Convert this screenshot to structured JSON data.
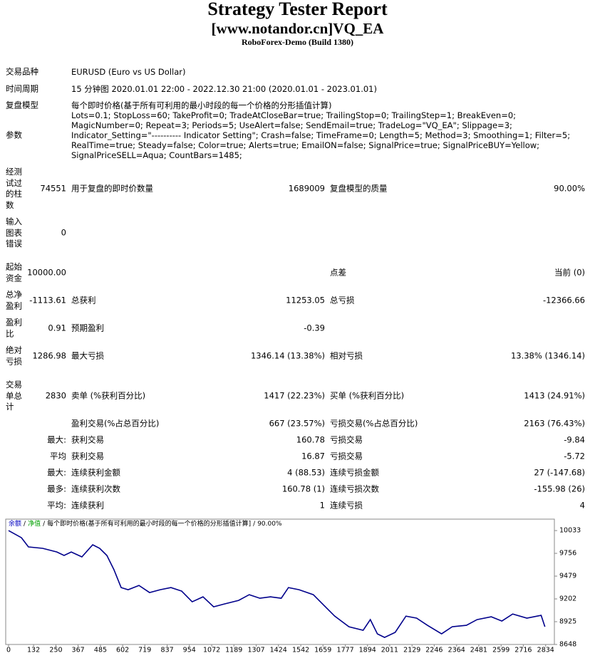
{
  "header": {
    "title": "Strategy Tester Report",
    "subtitle": "[www.notandor.cn]VQ_EA",
    "build": "RoboForex-Demo (Build 1380)"
  },
  "info": [
    {
      "label": "交易品种",
      "value": "EURUSD (Euro vs US Dollar)"
    },
    {
      "label": "时间周期",
      "value": "15 分钟图 2020.01.01 22:00 - 2022.12.30 21:00 (2020.01.01 - 2023.01.01)"
    },
    {
      "label": "复盘模型",
      "value": "每个即时价格(基于所有可利用的最小时段的每一个价格的分形插值计算)"
    },
    {
      "label": "参数",
      "value": "Lots=0.1; StopLoss=60; TakeProfit=0; TradeAtCloseBar=true; TrailingStop=0; TrailingStep=1; BreakEven=0; MagicNumber=0; Repeat=3; Periods=5; UseAlert=false; SendEmail=true; TradeLog=\"VQ_EA\"; Slippage=3; Indicator_Setting=\"---------- Indicator Setting\"; Crash=false; TimeFrame=0; Length=5; Method=3; Smoothing=1; Filter=5; RealTime=true; Steady=false; Color=true; Alerts=true; EmailON=false; SignalPrice=true; SignalPriceBUY=Yellow; SignalPriceSELL=Aqua; CountBars=1485;"
    }
  ],
  "stats": [
    {
      "l1": "经测试过的柱数",
      "v1": "74551",
      "l2": "用于复盘的即时价数量",
      "v2": "1689009",
      "l3": "复盘模型的质量",
      "v3": "90.00%"
    },
    {
      "l1": "输入图表错误",
      "v1": "0"
    },
    {
      "l1": "起始资金",
      "v1": "10000.00",
      "l3": "点差",
      "v3": "当前 (0)"
    },
    {
      "l1": "总净盈利",
      "v1": "-1113.61",
      "l2": "总获利",
      "v2": "11253.05",
      "l3": "总亏损",
      "v3": "-12366.66"
    },
    {
      "l1": "盈利比",
      "v1": "0.91",
      "l2": "预期盈利",
      "v2": "-0.39"
    },
    {
      "l1": "绝对亏损",
      "v1": "1286.98",
      "l2": "最大亏损",
      "v2": "1346.14 (13.38%)",
      "l3": "相对亏损",
      "v3": "13.38% (1346.14)"
    },
    {
      "l1": "交易单总计",
      "v1": "2830",
      "l2": "卖单 (%获利百分比)",
      "v2": "1417 (22.23%)",
      "l3": "买单 (%获利百分比)",
      "v3": "1413 (24.91%)"
    },
    {
      "l2": "盈利交易(%占总百分比)",
      "v2": "667 (23.57%)",
      "l3": "亏损交易(%占总百分比)",
      "v3": "2163 (76.43%)"
    },
    {
      "v1": "最大:",
      "l2": "获利交易",
      "v2": "160.78",
      "l3": "亏损交易",
      "v3": "-9.84"
    },
    {
      "v1": "平均",
      "l2": "获利交易",
      "v2": "16.87",
      "l3": "亏损交易",
      "v3": "-5.72"
    },
    {
      "v1": "最大:",
      "l2": "连续获利金额",
      "v2": "4 (88.53)",
      "l3": "连续亏损金额",
      "v3": "27 (-147.68)"
    },
    {
      "v1": "最多:",
      "l2": "连续获利次数",
      "v2": "160.78 (1)",
      "l3": "连续亏损次数",
      "v3": "-155.98 (26)"
    },
    {
      "v1": "平均:",
      "l2": "连续获利",
      "v2": "1",
      "l3": "连续亏损",
      "v3": "4"
    }
  ],
  "chart_data": {
    "type": "line",
    "legend": [
      {
        "text": "余额",
        "color": "#0000c0"
      },
      {
        "text": "/"
      },
      {
        "text": "净值",
        "color": "#00a000"
      },
      {
        "text": "/"
      },
      {
        "text": "每个即时价格(基于所有可利用的最小时段的每一个价格的分形插值计算]"
      },
      {
        "text": "/"
      },
      {
        "text": "90.00%"
      }
    ],
    "color": "#00008b",
    "x": [
      0,
      68,
      105,
      180,
      255,
      293,
      331,
      387,
      444,
      481,
      519,
      556,
      594,
      631,
      688,
      744,
      800,
      857,
      913,
      969,
      1026,
      1082,
      1139,
      1214,
      1270,
      1326,
      1383,
      1439,
      1477,
      1533,
      1608,
      1664,
      1721,
      1796,
      1871,
      1909,
      1946,
      1984,
      2040,
      2097,
      2153,
      2210,
      2285,
      2341,
      2416,
      2472,
      2547,
      2603,
      2660,
      2735,
      2810,
      2830
    ],
    "values": [
      10033,
      9946,
      9834,
      9817,
      9773,
      9730,
      9773,
      9713,
      9860,
      9817,
      9730,
      9557,
      9340,
      9314,
      9366,
      9279,
      9314,
      9340,
      9297,
      9167,
      9227,
      9106,
      9141,
      9184,
      9253,
      9210,
      9227,
      9210,
      9340,
      9314,
      9253,
      9123,
      8993,
      8864,
      8820,
      8950,
      8777,
      8734,
      8795,
      8993,
      8968,
      8881,
      8777,
      8864,
      8881,
      8950,
      8985,
      8933,
      9019,
      8968,
      9002,
      8864
    ],
    "xlim": [
      -15,
      2880
    ],
    "ylim": [
      8648,
      10172
    ],
    "xticks": [
      0,
      132,
      250,
      367,
      485,
      602,
      719,
      837,
      954,
      1072,
      1189,
      1307,
      1424,
      1542,
      1659,
      1777,
      1894,
      2011,
      2129,
      2246,
      2364,
      2481,
      2599,
      2716,
      2834
    ],
    "yticks": [
      10033,
      9756,
      9479,
      9202,
      8925,
      8648
    ]
  }
}
